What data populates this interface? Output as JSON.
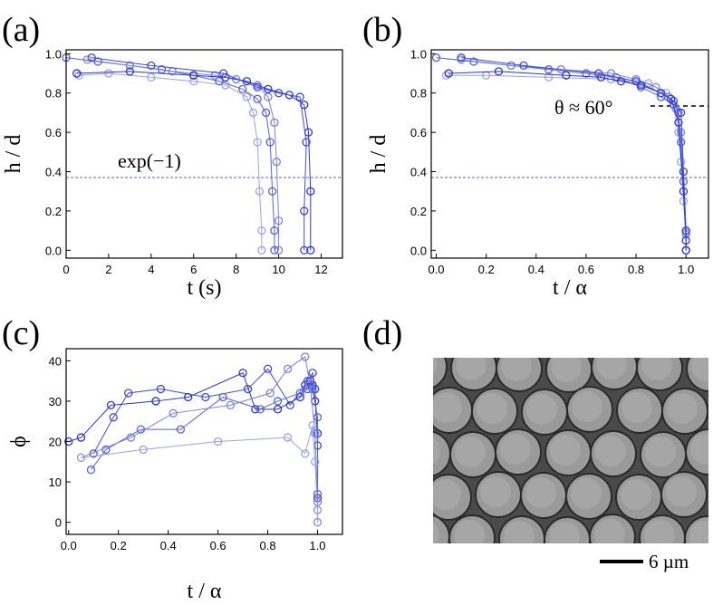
{
  "chart_data": [
    {
      "type": "line",
      "panel": "(a)",
      "x_label": "t (s)",
      "y_label": "h / d",
      "annotation": "exp(−1)",
      "reference_line": 0.37,
      "xlim": [
        0,
        13
      ],
      "ylim": [
        -0.04,
        1.02
      ],
      "xticks": [
        0,
        2,
        4,
        6,
        8,
        10,
        12
      ],
      "yticks": [
        {
          "value": 0,
          "label": "0.0"
        },
        0.2,
        0.4,
        0.6,
        0.8,
        {
          "value": 1,
          "label": "1.0"
        }
      ],
      "series": [
        {
          "color": "#9aa0ea",
          "x": [
            0.6,
            2,
            4,
            6,
            7.5,
            8.5,
            8.8,
            9.0,
            9.1,
            9.2,
            9.2
          ],
          "values": [
            0.89,
            0.9,
            0.88,
            0.86,
            0.84,
            0.78,
            0.7,
            0.55,
            0.3,
            0.1,
            0.0
          ]
        },
        {
          "color": "#5560d6",
          "x": [
            0,
            1.5,
            3,
            4.5,
            6,
            7.2,
            8.3,
            9.0,
            9.4,
            9.6,
            9.7,
            9.8,
            9.8
          ],
          "values": [
            0.98,
            0.96,
            0.94,
            0.92,
            0.89,
            0.86,
            0.82,
            0.77,
            0.7,
            0.55,
            0.3,
            0.1,
            0.0
          ]
        },
        {
          "color": "#7880e0",
          "x": [
            1,
            3,
            5,
            7,
            8,
            9,
            9.5,
            9.8,
            9.9,
            10.0,
            10.0
          ],
          "values": [
            0.97,
            0.94,
            0.91,
            0.89,
            0.87,
            0.84,
            0.78,
            0.65,
            0.45,
            0.15,
            0.0
          ]
        },
        {
          "color": "#2a35c8",
          "x": [
            0.5,
            3,
            6,
            7.5,
            8.5,
            9.5,
            10.5,
            11.2,
            11.4,
            11.5,
            11.5
          ],
          "values": [
            0.9,
            0.91,
            0.89,
            0.88,
            0.86,
            0.82,
            0.79,
            0.74,
            0.6,
            0.3,
            0.0
          ]
        },
        {
          "color": "#4048d0",
          "x": [
            1.2,
            4,
            7.4,
            9,
            10,
            11,
            11.3,
            11.2,
            11.2
          ],
          "values": [
            0.98,
            0.94,
            0.9,
            0.83,
            0.8,
            0.78,
            0.55,
            0.2,
            0.0
          ]
        }
      ]
    },
    {
      "type": "line",
      "panel": "(b)",
      "x_label": "t / α",
      "y_label": "h / d",
      "annotation": "θ ≈ 60°",
      "reference_line": 0.37,
      "xlim": [
        -0.02,
        1.09
      ],
      "ylim": [
        -0.04,
        1.02
      ],
      "xticks": [
        {
          "value": 0,
          "label": "0.0"
        },
        0.2,
        0.4,
        0.6,
        0.8,
        {
          "value": 1,
          "label": "1.0"
        }
      ],
      "yticks": [
        {
          "value": 0,
          "label": "0.0"
        },
        0.2,
        0.4,
        0.6,
        0.8,
        {
          "value": 1,
          "label": "1.0"
        }
      ],
      "series": [
        {
          "color": "#9aa0ea",
          "x": [
            0.04,
            0.2,
            0.45,
            0.7,
            0.85,
            0.92,
            0.95,
            0.97,
            0.98,
            0.99,
            1.0,
            1.0
          ],
          "values": [
            0.89,
            0.89,
            0.88,
            0.87,
            0.85,
            0.8,
            0.74,
            0.6,
            0.45,
            0.25,
            0.08,
            0.0
          ]
        },
        {
          "color": "#5560d6",
          "x": [
            0,
            0.15,
            0.3,
            0.45,
            0.6,
            0.72,
            0.82,
            0.9,
            0.95,
            0.97,
            0.98,
            0.99,
            1.0,
            1.0
          ],
          "values": [
            0.98,
            0.96,
            0.94,
            0.92,
            0.9,
            0.88,
            0.83,
            0.78,
            0.74,
            0.7,
            0.55,
            0.35,
            0.1,
            0.0
          ]
        },
        {
          "color": "#7880e0",
          "x": [
            0.1,
            0.3,
            0.5,
            0.7,
            0.8,
            0.88,
            0.93,
            0.96,
            0.98,
            0.99,
            1.0,
            1.0
          ],
          "values": [
            0.97,
            0.94,
            0.92,
            0.9,
            0.87,
            0.83,
            0.78,
            0.72,
            0.6,
            0.4,
            0.09,
            0.0
          ]
        },
        {
          "color": "#2a35c8",
          "x": [
            0.05,
            0.25,
            0.52,
            0.66,
            0.74,
            0.82,
            0.9,
            0.94,
            0.97,
            0.99,
            1.0,
            1.0
          ],
          "values": [
            0.9,
            0.91,
            0.89,
            0.88,
            0.86,
            0.84,
            0.8,
            0.77,
            0.65,
            0.3,
            0.05,
            0.0
          ]
        },
        {
          "color": "#4048d0",
          "x": [
            0.1,
            0.35,
            0.65,
            0.8,
            0.9,
            0.95,
            0.98,
            0.99,
            1.0,
            1.0
          ],
          "values": [
            0.98,
            0.94,
            0.9,
            0.86,
            0.8,
            0.76,
            0.7,
            0.4,
            0.1,
            0.0
          ]
        }
      ]
    },
    {
      "type": "line",
      "panel": "(c)",
      "x_label": "t / α",
      "y_label": "ϕ",
      "xlim": [
        -0.01,
        1.1
      ],
      "ylim": [
        -3,
        43
      ],
      "xticks": [
        {
          "value": 0,
          "label": "0.0"
        },
        0.2,
        0.4,
        0.6,
        0.8,
        {
          "value": 1,
          "label": "1.0"
        }
      ],
      "yticks": [
        0,
        10,
        20,
        30,
        40
      ],
      "series": [
        {
          "color": "#2a35c8",
          "x": [
            0,
            0.05,
            0.17,
            0.35,
            0.48,
            0.7,
            0.75,
            0.84,
            0.93,
            0.95,
            0.97,
            0.98,
            0.99,
            1.0,
            1.0,
            1.0
          ],
          "values": [
            20,
            21,
            29,
            30,
            31,
            37,
            28,
            28,
            31,
            34,
            35,
            34,
            30,
            22,
            6,
            0
          ]
        },
        {
          "color": "#4048d0",
          "x": [
            0.1,
            0.18,
            0.24,
            0.37,
            0.55,
            0.72,
            0.8,
            0.89,
            0.96,
            0.98,
            0.99,
            1.0,
            1.0
          ],
          "values": [
            17,
            26,
            32,
            33,
            31,
            33,
            38,
            29,
            35,
            37,
            33,
            19,
            3
          ]
        },
        {
          "color": "#5560d6",
          "x": [
            0.09,
            0.15,
            0.29,
            0.45,
            0.62,
            0.77,
            0.84,
            0.93,
            0.96,
            0.98,
            1.0,
            1.0
          ],
          "values": [
            13,
            18,
            23,
            23,
            31,
            28,
            30,
            32,
            33,
            33,
            26,
            7
          ]
        },
        {
          "color": "#7880e0",
          "x": [
            0.05,
            0.25,
            0.42,
            0.65,
            0.81,
            0.88,
            0.95,
            0.97,
            0.99,
            1.0,
            1.0
          ],
          "values": [
            16,
            21,
            27,
            29,
            32,
            38,
            41,
            34,
            22,
            5,
            0
          ]
        },
        {
          "color": "#9aa0ea",
          "x": [
            0.05,
            0.3,
            0.6,
            0.88,
            0.95,
            0.98,
            0.99,
            1.0,
            1.0
          ],
          "values": [
            16,
            18,
            20,
            21,
            17,
            24,
            15,
            3,
            0
          ]
        }
      ]
    }
  ],
  "image_panel": {
    "panel": "(d)",
    "scale_bar": "6 µm"
  }
}
